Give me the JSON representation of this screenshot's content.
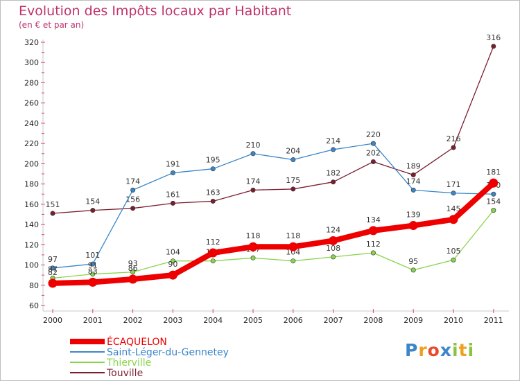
{
  "chart_data": {
    "type": "line",
    "title": "Evolution des Impôts locaux par Habitant",
    "subtitle": "(en € et par an)",
    "x": [
      "2000",
      "2001",
      "2002",
      "2003",
      "2004",
      "2005",
      "2006",
      "2007",
      "2008",
      "2009",
      "2010",
      "2011"
    ],
    "ylim": [
      60,
      320
    ],
    "yticks": [
      60,
      80,
      100,
      120,
      140,
      160,
      180,
      200,
      220,
      240,
      260,
      280,
      300,
      320
    ],
    "grid": false,
    "legend_position": "bottom-left",
    "series": [
      {
        "name": "Touville",
        "color": "#7b1e2e",
        "values": [
          151,
          154,
          156,
          161,
          163,
          174,
          175,
          182,
          202,
          189,
          216,
          316
        ]
      },
      {
        "name": "Saint-Léger-du-Gennetey",
        "color": "#3a86c8",
        "values": [
          97,
          101,
          174,
          191,
          195,
          210,
          204,
          214,
          220,
          174,
          171,
          170
        ]
      },
      {
        "name": "Thierville",
        "color": "#88d44a",
        "values": [
          87,
          91,
          93,
          104,
          104,
          107,
          104,
          108,
          112,
          95,
          105,
          154
        ]
      },
      {
        "name": "ÉCAQUELON",
        "color": "#ee0000",
        "values": [
          82,
          83,
          86,
          90,
          112,
          118,
          118,
          124,
          134,
          139,
          145,
          181
        ]
      }
    ]
  },
  "legend": [
    {
      "name": "ÉCAQUELON",
      "color": "#ee0000"
    },
    {
      "name": "Saint-Léger-du-Gennetey",
      "color": "#3a86c8"
    },
    {
      "name": "Thierville",
      "color": "#88d44a"
    },
    {
      "name": "Touville",
      "color": "#7b1e2e"
    }
  ],
  "logo": {
    "text": "Proxiti",
    "letters": [
      {
        "ch": "P",
        "color": "#3a86c8"
      },
      {
        "ch": "r",
        "color": "#f0a020"
      },
      {
        "ch": "o",
        "color": "#e84a2a"
      },
      {
        "ch": "x",
        "color": "#3a86c8"
      },
      {
        "ch": "i",
        "color": "#88c440"
      },
      {
        "ch": "t",
        "color": "#f0a020"
      },
      {
        "ch": "i",
        "color": "#88c440"
      }
    ]
  }
}
